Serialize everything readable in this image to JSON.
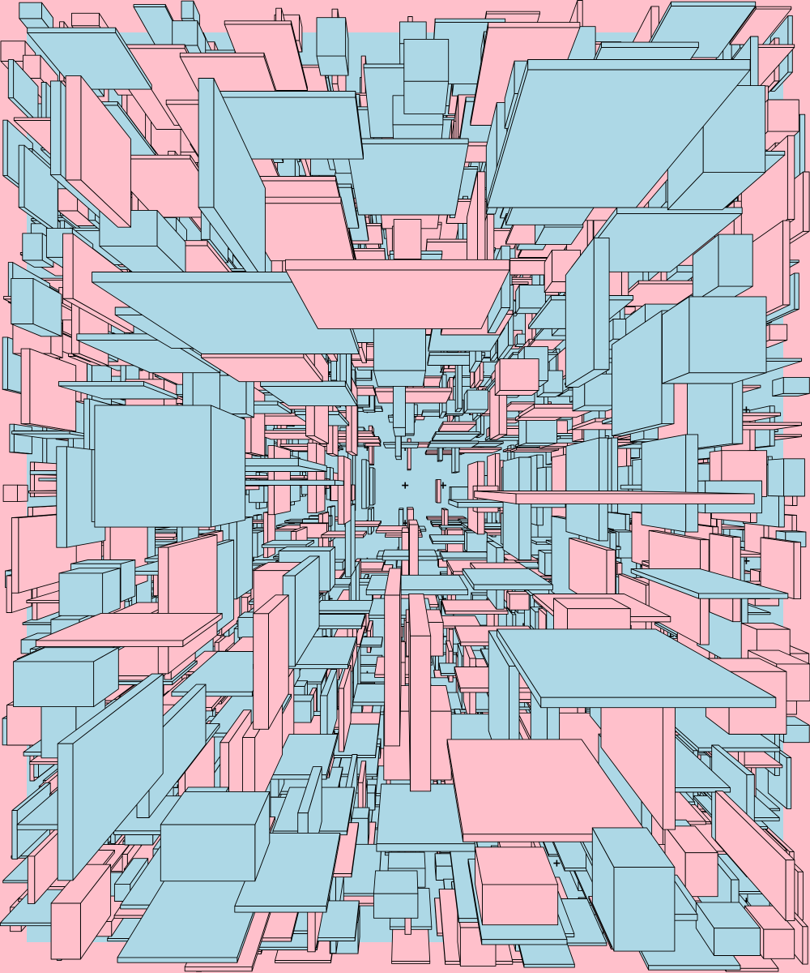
{
  "palette": {
    "background": "#FFC0CB",
    "panel": "#ADD8E6",
    "box_pink": "#FFC0CB",
    "box_blue": "#ADD8E6",
    "stroke": "#000000"
  }
}
